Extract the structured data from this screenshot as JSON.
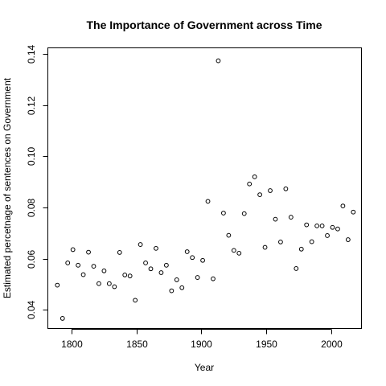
{
  "chart_data": {
    "type": "scatter",
    "title": "The Importance of Government across Time",
    "xlabel": "Year",
    "ylabel": "Estimated percetnage of sentences on Government",
    "xlim": [
      1782,
      2023
    ],
    "ylim": [
      0.0328,
      0.1423
    ],
    "xticks": [
      1800,
      1850,
      1900,
      1950,
      2000
    ],
    "yticks": [
      0.04,
      0.06,
      0.08,
      0.1,
      0.12,
      0.14
    ],
    "ytick_labels": [
      "0.04",
      "0.06",
      "0.08",
      "0.10",
      "0.12",
      "0.14"
    ],
    "marker": "open-circle",
    "color": "#000000",
    "points": [
      [
        1789,
        0.0496
      ],
      [
        1793,
        0.0366
      ],
      [
        1797,
        0.0583
      ],
      [
        1801,
        0.0635
      ],
      [
        1805,
        0.0574
      ],
      [
        1809,
        0.0537
      ],
      [
        1813,
        0.0625
      ],
      [
        1817,
        0.057
      ],
      [
        1821,
        0.0502
      ],
      [
        1825,
        0.0552
      ],
      [
        1829,
        0.0502
      ],
      [
        1833,
        0.049
      ],
      [
        1837,
        0.0624
      ],
      [
        1841,
        0.0536
      ],
      [
        1845,
        0.0532
      ],
      [
        1849,
        0.0437
      ],
      [
        1853,
        0.0655
      ],
      [
        1857,
        0.0583
      ],
      [
        1861,
        0.056
      ],
      [
        1865,
        0.064
      ],
      [
        1869,
        0.0545
      ],
      [
        1873,
        0.0574
      ],
      [
        1877,
        0.0474
      ],
      [
        1881,
        0.0517
      ],
      [
        1885,
        0.0486
      ],
      [
        1889,
        0.0627
      ],
      [
        1893,
        0.0604
      ],
      [
        1897,
        0.0526
      ],
      [
        1901,
        0.0593
      ],
      [
        1905,
        0.0824
      ],
      [
        1909,
        0.0521
      ],
      [
        1913,
        0.1374
      ],
      [
        1917,
        0.0778
      ],
      [
        1921,
        0.0691
      ],
      [
        1925,
        0.0632
      ],
      [
        1929,
        0.0621
      ],
      [
        1933,
        0.0776
      ],
      [
        1937,
        0.0892
      ],
      [
        1941,
        0.092
      ],
      [
        1945,
        0.085
      ],
      [
        1949,
        0.0644
      ],
      [
        1953,
        0.0866
      ],
      [
        1957,
        0.0754
      ],
      [
        1961,
        0.0665
      ],
      [
        1965,
        0.0873
      ],
      [
        1969,
        0.0762
      ],
      [
        1973,
        0.0561
      ],
      [
        1977,
        0.0637
      ],
      [
        1981,
        0.0732
      ],
      [
        1985,
        0.0666
      ],
      [
        1989,
        0.0728
      ],
      [
        1993,
        0.0728
      ],
      [
        1997,
        0.069
      ],
      [
        2001,
        0.0722
      ],
      [
        2005,
        0.0716
      ],
      [
        2009,
        0.0806
      ],
      [
        2013,
        0.0674
      ],
      [
        2017,
        0.0782
      ]
    ]
  }
}
